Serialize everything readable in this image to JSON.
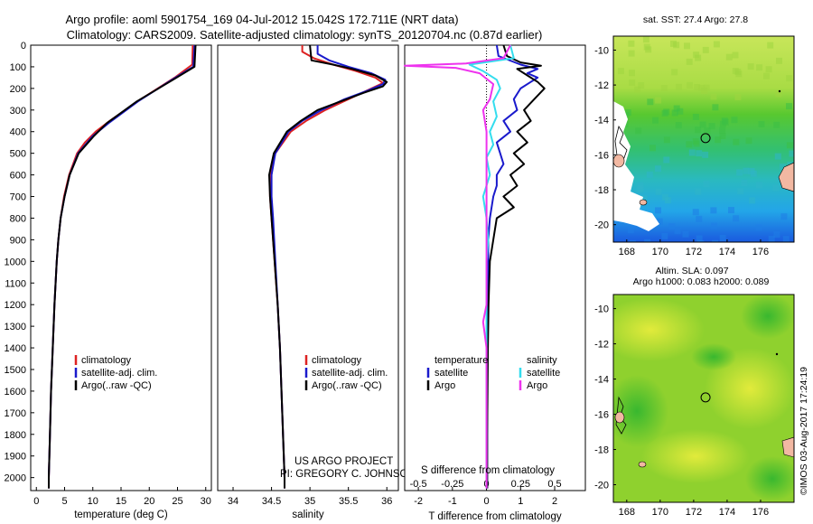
{
  "header": {
    "title_line1": "Argo profile: aoml 5901754_169 04-Jul-2012 15.042S 172.711E (NRT data)",
    "title_line2": "Climatology: CARS2009. Satellite-adjusted climatology: synTS_20120704.nc (0.87d earlier)"
  },
  "colors": {
    "climatology": "#dd2222",
    "satellite": "#1a1acc",
    "argo": "#000000",
    "sal_satellite": "#33ddee",
    "sal_argo": "#ee33ee"
  },
  "depth_axis": {
    "min": 0,
    "max": 2060,
    "ticks": [
      "0",
      "100",
      "200",
      "300",
      "400",
      "500",
      "600",
      "700",
      "800",
      "900",
      "1000",
      "1100",
      "1200",
      "1300",
      "1400",
      "1500",
      "1600",
      "1700",
      "1800",
      "1900",
      "2000"
    ]
  },
  "chart_data": [
    {
      "type": "line",
      "id": "temperature",
      "xlabel": "temperature (deg C)",
      "xlim": [
        -1,
        31
      ],
      "xticks": [
        "0",
        "5",
        "10",
        "15",
        "20",
        "25",
        "30"
      ],
      "xtick_values": [
        0,
        5,
        10,
        15,
        20,
        25,
        30
      ],
      "legend": [
        "climatology",
        "satellite-adj. clim.",
        "Argo(..raw -QC)"
      ],
      "series": [
        {
          "name": "climatology",
          "color": "#dd2222",
          "depth": [
            0,
            90,
            150,
            250,
            350,
            400,
            450,
            500,
            600,
            700,
            800,
            900,
            1000,
            1200,
            1400,
            1600,
            1800,
            2000,
            2050
          ],
          "values": [
            27.7,
            27.6,
            24.5,
            18.5,
            13.0,
            10.5,
            8.6,
            7.2,
            5.8,
            4.9,
            4.3,
            3.9,
            3.6,
            3.2,
            2.9,
            2.6,
            2.4,
            2.2,
            2.2
          ]
        },
        {
          "name": "satellite-adj. clim.",
          "color": "#1a1acc",
          "depth": [
            0,
            100,
            160,
            260,
            360,
            420,
            500,
            600,
            700,
            800,
            900,
            1000,
            1200,
            1400,
            1600,
            1800,
            2000,
            2050
          ],
          "values": [
            28.0,
            27.8,
            24.0,
            18.0,
            12.8,
            10.0,
            7.4,
            5.9,
            5.0,
            4.3,
            3.9,
            3.6,
            3.2,
            2.9,
            2.6,
            2.4,
            2.2,
            2.2
          ]
        },
        {
          "name": "Argo(..raw -QC)",
          "color": "#000000",
          "depth": [
            0,
            100,
            160,
            260,
            360,
            420,
            500,
            600,
            700,
            800,
            900,
            1000,
            1200,
            1400,
            1600,
            1800,
            2000,
            2050
          ],
          "values": [
            28.2,
            28.0,
            24.2,
            17.8,
            12.5,
            10.2,
            7.5,
            5.9,
            5.0,
            4.3,
            3.9,
            3.6,
            3.2,
            2.9,
            2.6,
            2.4,
            2.2,
            2.2
          ]
        }
      ]
    },
    {
      "type": "line",
      "id": "salinity",
      "xlabel": "salinity",
      "xlim": [
        33.8,
        36.15
      ],
      "xticks": [
        "34",
        "34.5",
        "35",
        "35.5",
        "36"
      ],
      "xtick_values": [
        34,
        34.5,
        35,
        35.5,
        36
      ],
      "legend": [
        "climatology",
        "satellite-adj. clim.",
        "Argo(..raw -QC)"
      ],
      "series": [
        {
          "name": "climatology",
          "color": "#dd2222",
          "depth": [
            0,
            30,
            60,
            90,
            120,
            150,
            175,
            200,
            250,
            300,
            350,
            400,
            500,
            600,
            700,
            800,
            1000,
            1200,
            1400,
            1600,
            1800,
            2000,
            2050
          ],
          "values": [
            34.9,
            34.9,
            35.05,
            35.3,
            35.6,
            35.85,
            35.95,
            35.8,
            35.5,
            35.2,
            34.95,
            34.75,
            34.55,
            34.48,
            34.48,
            34.5,
            34.54,
            34.58,
            34.61,
            34.63,
            34.65,
            34.67,
            34.67
          ]
        },
        {
          "name": "satellite-adj. clim.",
          "color": "#1a1acc",
          "depth": [
            0,
            40,
            70,
            100,
            130,
            160,
            180,
            210,
            250,
            300,
            350,
            400,
            500,
            600,
            700,
            800,
            1000,
            1200,
            1400,
            1600,
            1800,
            2000,
            2050
          ],
          "values": [
            35.1,
            35.1,
            35.25,
            35.5,
            35.8,
            35.98,
            35.95,
            35.75,
            35.45,
            35.15,
            34.9,
            34.72,
            34.55,
            34.5,
            34.5,
            34.52,
            34.55,
            34.58,
            34.61,
            34.63,
            34.65,
            34.67,
            34.67
          ]
        },
        {
          "name": "Argo(..raw -QC)",
          "color": "#000000",
          "depth": [
            0,
            70,
            90,
            110,
            140,
            170,
            190,
            220,
            260,
            300,
            350,
            400,
            500,
            600,
            700,
            800,
            1000,
            1200,
            1400,
            1600,
            1800,
            2000,
            2050
          ],
          "values": [
            35.0,
            35.02,
            35.3,
            35.55,
            35.85,
            36.0,
            35.95,
            35.7,
            35.4,
            35.1,
            34.88,
            34.7,
            34.53,
            34.47,
            34.48,
            34.5,
            34.54,
            34.58,
            34.61,
            34.63,
            34.65,
            34.67,
            34.67
          ]
        }
      ]
    },
    {
      "type": "line",
      "id": "difference",
      "xlabel_top": "S difference from climatology",
      "xlabel": "T difference from climatology",
      "xlim": [
        -2.4,
        2.9
      ],
      "xticks_T": [
        "-2",
        "-1",
        "0",
        "1",
        "2"
      ],
      "xticks_T_values": [
        -2,
        -1,
        0,
        1,
        2
      ],
      "xticks_S": [
        "-0.5",
        "-0.25",
        "0",
        "0.25",
        "0.5"
      ],
      "xticks_S_positions": [
        -2,
        -1,
        0,
        1,
        2
      ],
      "legend_left_title": "temperature",
      "legend_right_title": "salinity",
      "legend_left": [
        "satellite",
        "Argo"
      ],
      "legend_right": [
        "satellite",
        "Argo"
      ],
      "series": [
        {
          "name": "temperature satellite",
          "color": "#1a1acc",
          "depth": [
            0,
            50,
            90,
            110,
            130,
            150,
            170,
            200,
            250,
            300,
            350,
            400,
            450,
            500,
            550,
            600,
            650,
            700,
            800,
            900,
            1000,
            1200,
            1400,
            1600,
            1800,
            2000,
            2050
          ],
          "values": [
            0.3,
            0.35,
            1.0,
            1.5,
            1.2,
            1.5,
            1.3,
            1.0,
            0.8,
            0.9,
            0.5,
            0.7,
            0.3,
            0.4,
            0.5,
            0.3,
            0.3,
            0.2,
            0.1,
            0.05,
            0.05,
            0.02,
            0.02,
            0.02,
            0.02,
            0.02,
            0.02
          ]
        },
        {
          "name": "temperature Argo",
          "color": "#000000",
          "depth": [
            0,
            50,
            80,
            95,
            110,
            140,
            170,
            200,
            250,
            300,
            350,
            400,
            450,
            500,
            550,
            600,
            650,
            700,
            750,
            800,
            900,
            1000,
            1200,
            1400,
            1600,
            1800,
            2000,
            2050
          ],
          "values": [
            0.5,
            0.6,
            1.0,
            1.6,
            0.9,
            1.2,
            1.5,
            1.7,
            1.4,
            1.1,
            1.3,
            0.9,
            1.2,
            0.8,
            1.1,
            0.7,
            0.9,
            0.5,
            0.8,
            0.3,
            0.2,
            0.1,
            0.06,
            0.04,
            0.03,
            0.02,
            0.02,
            0.02
          ]
        },
        {
          "name": "salinity satellite",
          "color": "#33ddee",
          "depth": [
            0,
            60,
            90,
            120,
            160,
            200,
            260,
            330,
            400,
            460,
            520,
            600,
            700,
            800,
            900,
            1000,
            1200,
            1400,
            1600,
            1800,
            2000,
            2050
          ],
          "values": [
            0.7,
            0.8,
            -0.5,
            -0.1,
            0.3,
            0.4,
            0.2,
            0.3,
            0.1,
            0.2,
            0.0,
            0.1,
            -0.1,
            0.0,
            0.05,
            0.0,
            0.0,
            0.0,
            0.0,
            0.0,
            0.0,
            0.0
          ]
        },
        {
          "name": "salinity Argo",
          "color": "#ee33ee",
          "depth": [
            0,
            60,
            85,
            95,
            105,
            130,
            180,
            250,
            300,
            400,
            500,
            600,
            700,
            800,
            900,
            1000,
            1200,
            1280,
            1400,
            1600,
            1800,
            2000,
            2050
          ],
          "values": [
            0.7,
            0.5,
            -0.6,
            -2.4,
            -0.9,
            -0.2,
            0.2,
            0.1,
            -0.1,
            0.0,
            0.0,
            0.0,
            0.0,
            0.0,
            0.0,
            0.0,
            0.0,
            -0.1,
            0.0,
            0.0,
            0.0,
            0.0,
            0.0
          ]
        }
      ]
    },
    {
      "type": "heatmap",
      "id": "sst_map",
      "title": "sat. SST: 27.4 Argo: 27.8",
      "xticks": [
        "168",
        "170",
        "172",
        "174",
        "176"
      ],
      "xtick_values": [
        168,
        170,
        172,
        174,
        176
      ],
      "yticks": [
        "-10",
        "-12",
        "-14",
        "-16",
        "-18",
        "-20"
      ],
      "ytick_values": [
        -10,
        -12,
        -14,
        -16,
        -18,
        -20
      ],
      "xlim": [
        167.2,
        178.0
      ],
      "ylim": [
        -21.0,
        -9.2
      ],
      "marker": {
        "lon": 172.711,
        "lat": -15.042
      }
    },
    {
      "type": "heatmap",
      "id": "sla_map",
      "title": "Altim. SLA: 0.097",
      "subtitle": "Argo h1000: 0.083 h2000: 0.089",
      "xticks": [
        "168",
        "170",
        "172",
        "174",
        "176"
      ],
      "xtick_values": [
        168,
        170,
        172,
        174,
        176
      ],
      "yticks": [
        "-10",
        "-12",
        "-14",
        "-16",
        "-18",
        "-20"
      ],
      "ytick_values": [
        -10,
        -12,
        -14,
        -16,
        -18,
        -20
      ],
      "xlim": [
        167.2,
        178.0
      ],
      "ylim": [
        -21.0,
        -9.2
      ],
      "marker": {
        "lon": 172.711,
        "lat": -15.042
      }
    }
  ],
  "credits": {
    "project": "US ARGO PROJECT",
    "pi": "PI: GREGORY C. JOHNSON",
    "timestamp": "©IMOS 03-Aug-2017 17:24:19"
  }
}
